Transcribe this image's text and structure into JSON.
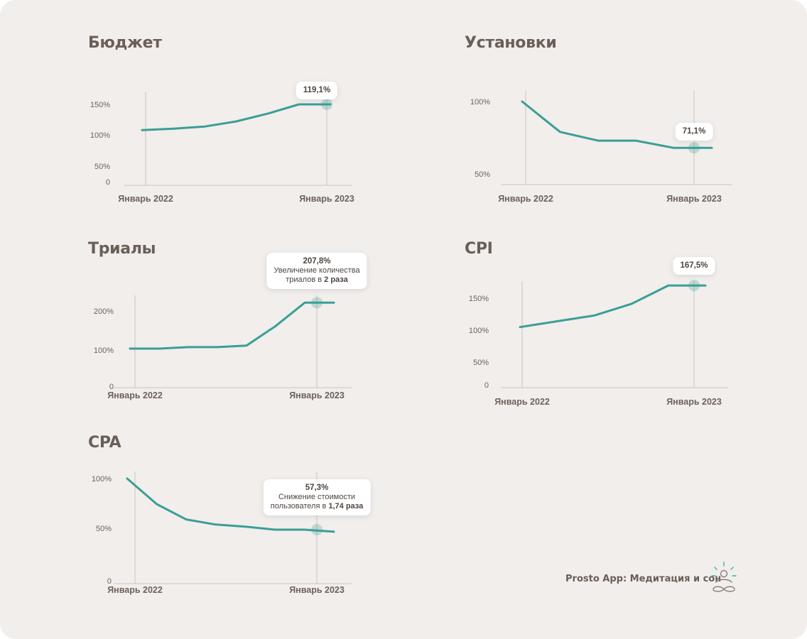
{
  "footer": {
    "text": "Prosto App: Медитация и сон"
  },
  "colors": {
    "background": "#f1eeec",
    "line": "#3b9e96",
    "text": "#6a5f58"
  },
  "icons": {
    "logo": "meditation-sun-icon"
  },
  "chart_data": [
    {
      "id": "budget",
      "type": "line",
      "title": "Бюджет",
      "x_tick_labels": [
        "Январь 2022",
        "Январь 2023"
      ],
      "y_tick_labels": [
        "0",
        "50%",
        "100%",
        "150%"
      ],
      "ylim": [
        0,
        150
      ],
      "series": [
        {
          "values": [
            100,
            103,
            107,
            117,
            132,
            150,
            150
          ]
        }
      ],
      "annotation": {
        "value": "119,1%",
        "note_prefix": "",
        "note_bold": "",
        "note_line2_prefix": "",
        "note_line2_bold": ""
      }
    },
    {
      "id": "installs",
      "type": "line",
      "title": "Установки",
      "x_tick_labels": [
        "Январь 2022",
        "Январь 2023"
      ],
      "y_tick_labels": [
        "50%",
        "100%"
      ],
      "ylim": [
        50,
        100
      ],
      "series": [
        {
          "values": [
            100,
            79,
            73,
            73,
            68,
            68
          ]
        }
      ],
      "annotation": {
        "value": "71,1%",
        "note_prefix": "",
        "note_bold": "",
        "note_line2_prefix": "",
        "note_line2_bold": ""
      }
    },
    {
      "id": "trials",
      "type": "line",
      "title": "Триалы",
      "x_tick_labels": [
        "Январь 2022",
        "Январь 2023"
      ],
      "y_tick_labels": [
        "0",
        "100%",
        "200%"
      ],
      "ylim": [
        0,
        200
      ],
      "series": [
        {
          "values": [
            100,
            100,
            104,
            104,
            108,
            160,
            222,
            222
          ]
        }
      ],
      "annotation": {
        "value": "207,8%",
        "note_prefix": "Увеличение количества",
        "note_bold": "",
        "note_line2_prefix": "триалов в ",
        "note_line2_bold": "2 раза"
      }
    },
    {
      "id": "cpi",
      "type": "line",
      "title": "CPI",
      "x_tick_labels": [
        "Январь 2022",
        "Январь 2023"
      ],
      "y_tick_labels": [
        "0",
        "50%",
        "100%",
        "150%"
      ],
      "ylim": [
        0,
        150
      ],
      "series": [
        {
          "values": [
            100,
            110,
            120,
            140,
            172,
            172
          ]
        }
      ],
      "annotation": {
        "value": "167,5%",
        "note_prefix": "",
        "note_bold": "",
        "note_line2_prefix": "",
        "note_line2_bold": ""
      }
    },
    {
      "id": "cpa",
      "type": "line",
      "title": "CPA",
      "x_tick_labels": [
        "Январь 2022",
        "Январь 2023"
      ],
      "y_tick_labels": [
        "0",
        "50%",
        "100%"
      ],
      "ylim": [
        0,
        100
      ],
      "series": [
        {
          "values": [
            100,
            75,
            60,
            55,
            53,
            50,
            50,
            48
          ]
        }
      ],
      "annotation": {
        "value": "57,3%",
        "note_prefix": "Снижение стоимости",
        "note_bold": "",
        "note_line2_prefix": "пользователя в ",
        "note_line2_bold": "1,74 раза"
      }
    }
  ]
}
